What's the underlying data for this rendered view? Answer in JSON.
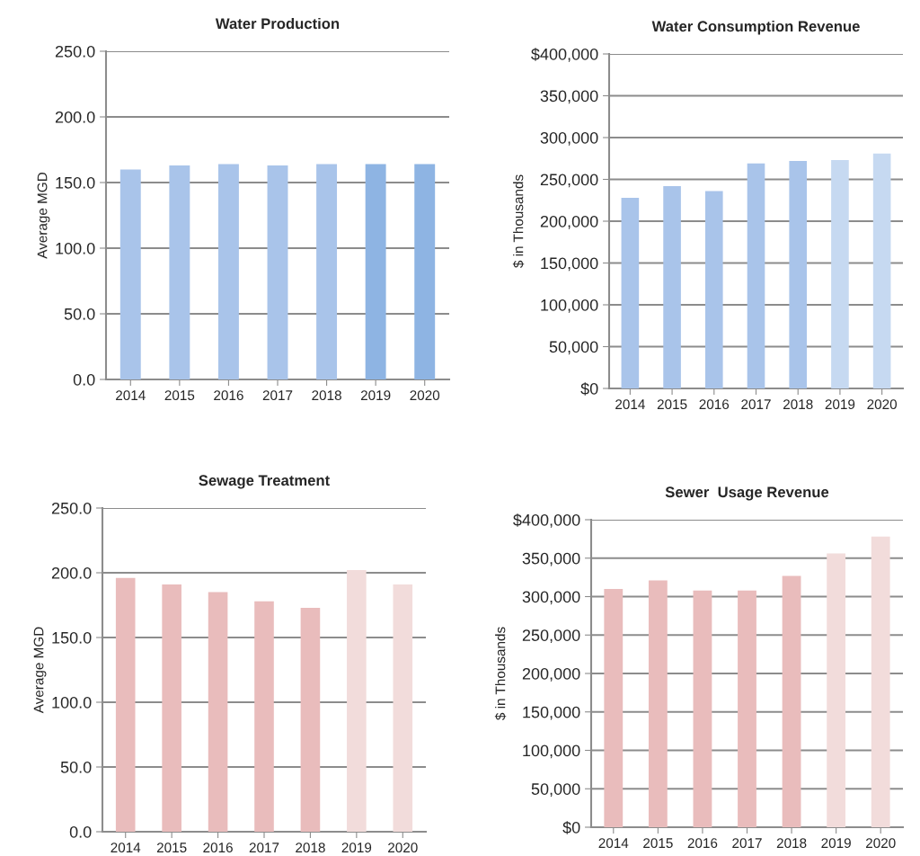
{
  "chart_data": [
    {
      "type": "bar",
      "title": "Water Production",
      "ylabel": "Average MGD",
      "categories": [
        "2014",
        "2015",
        "2016",
        "2017",
        "2018",
        "2019",
        "2020"
      ],
      "values": [
        160,
        163,
        164,
        163,
        164,
        164,
        164
      ],
      "colors": [
        "#a9c4ea",
        "#a9c4ea",
        "#a9c4ea",
        "#a9c4ea",
        "#a9c4ea",
        "#8eb4e3",
        "#8eb4e3"
      ],
      "ylim": [
        0,
        250
      ],
      "yticks": [
        {
          "value": 0,
          "label": "0.0"
        },
        {
          "value": 50,
          "label": "50.0"
        },
        {
          "value": 100,
          "label": "100.0"
        },
        {
          "value": 150,
          "label": "150.0"
        },
        {
          "value": 200,
          "label": "200.0"
        },
        {
          "value": 250,
          "label": "250.0"
        }
      ],
      "grid": "y"
    },
    {
      "type": "bar",
      "title": "Water Consumption Revenue",
      "ylabel": "$ in Thousands",
      "categories": [
        "2014",
        "2015",
        "2016",
        "2017",
        "2018",
        "2019",
        "2020"
      ],
      "values": [
        228000,
        242000,
        236000,
        269000,
        272000,
        273000,
        281000
      ],
      "colors": [
        "#a9c4ea",
        "#a9c4ea",
        "#a9c4ea",
        "#a9c4ea",
        "#a9c4ea",
        "#c6d9f1",
        "#c6d9f1"
      ],
      "ylim": [
        0,
        400000
      ],
      "yticks": [
        {
          "value": 0,
          "label": "$0"
        },
        {
          "value": 50000,
          "label": "50,000"
        },
        {
          "value": 100000,
          "label": "100,000"
        },
        {
          "value": 150000,
          "label": "150,000"
        },
        {
          "value": 200000,
          "label": "200,000"
        },
        {
          "value": 250000,
          "label": "250,000"
        },
        {
          "value": 300000,
          "label": "300,000"
        },
        {
          "value": 350000,
          "label": "350,000"
        },
        {
          "value": 400000,
          "label": "$400,000"
        }
      ],
      "grid": "y"
    },
    {
      "type": "bar",
      "title": "Sewage Treatment",
      "ylabel": "Average MGD",
      "categories": [
        "2014",
        "2015",
        "2016",
        "2017",
        "2018",
        "2019",
        "2020"
      ],
      "values": [
        196,
        191,
        185,
        178,
        173,
        202,
        191
      ],
      "colors": [
        "#e9bcbc",
        "#e9bcbc",
        "#e9bcbc",
        "#e9bcbc",
        "#e9bcbc",
        "#f2dcdb",
        "#f2dcdb"
      ],
      "ylim": [
        0,
        250
      ],
      "yticks": [
        {
          "value": 0,
          "label": "0.0"
        },
        {
          "value": 50,
          "label": "50.0"
        },
        {
          "value": 100,
          "label": "100.0"
        },
        {
          "value": 150,
          "label": "150.0"
        },
        {
          "value": 200,
          "label": "200.0"
        },
        {
          "value": 250,
          "label": "250.0"
        }
      ],
      "grid": "y"
    },
    {
      "type": "bar",
      "title": "Sewer  Usage Revenue",
      "ylabel": "$ in Thousands",
      "categories": [
        "2014",
        "2015",
        "2016",
        "2017",
        "2018",
        "2019",
        "2020"
      ],
      "values": [
        310000,
        321000,
        308000,
        308000,
        327000,
        356000,
        378000
      ],
      "colors": [
        "#e9bcbc",
        "#e9bcbc",
        "#e9bcbc",
        "#e9bcbc",
        "#e9bcbc",
        "#f2dcdb",
        "#f2dcdb"
      ],
      "ylim": [
        0,
        400000
      ],
      "yticks": [
        {
          "value": 0,
          "label": "$0"
        },
        {
          "value": 50000,
          "label": "50,000"
        },
        {
          "value": 100000,
          "label": "100,000"
        },
        {
          "value": 150000,
          "label": "150,000"
        },
        {
          "value": 200000,
          "label": "200,000"
        },
        {
          "value": 250000,
          "label": "250,000"
        },
        {
          "value": 300000,
          "label": "300,000"
        },
        {
          "value": 350000,
          "label": "350,000"
        },
        {
          "value": 400000,
          "label": "$400,000"
        }
      ],
      "grid": "y"
    }
  ]
}
